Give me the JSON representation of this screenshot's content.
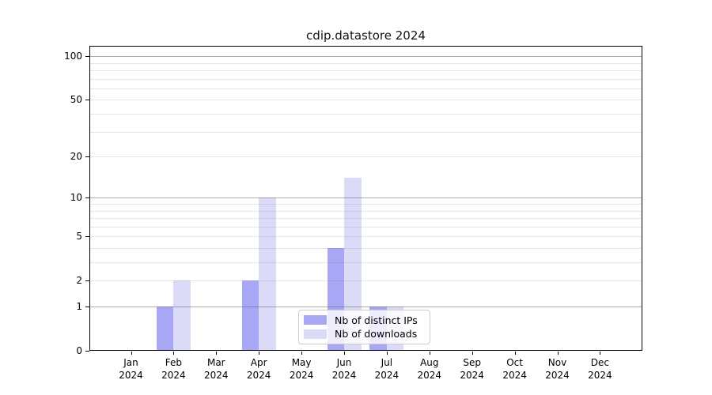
{
  "title": "cdip.datastore 2024",
  "chart_data": {
    "type": "bar",
    "title": "cdip.datastore 2024",
    "categories": [
      "Jan 2024",
      "Feb 2024",
      "Mar 2024",
      "Apr 2024",
      "May 2024",
      "Jun 2024",
      "Jul 2024",
      "Aug 2024",
      "Sep 2024",
      "Oct 2024",
      "Nov 2024",
      "Dec 2024"
    ],
    "series": [
      {
        "name": "Nb of distinct IPs",
        "color": "#a7a7f5",
        "values": [
          0,
          1,
          0,
          2,
          0,
          4,
          1,
          0,
          0,
          0,
          0,
          0
        ]
      },
      {
        "name": "Nb of downloads",
        "color": "#dbdbf8",
        "values": [
          0,
          2,
          0,
          10,
          0,
          14,
          1,
          0,
          0,
          0,
          0,
          0
        ]
      }
    ],
    "xlabel": "",
    "ylabel": "",
    "y_scale": "log10(1+x)",
    "y_ticks": [
      0,
      1,
      2,
      5,
      10,
      20,
      50,
      100
    ],
    "ylim": [
      0,
      118
    ],
    "grid": {
      "on": true,
      "minor_values": [
        2,
        3,
        4,
        5,
        6,
        7,
        8,
        9,
        20,
        30,
        40,
        50,
        60,
        70,
        80,
        90
      ],
      "major_values": [
        1,
        10,
        100
      ],
      "minor_color": "#e7e7e7",
      "major_color": "#b4b4b4"
    },
    "legend": {
      "position": "lower-center",
      "entries": [
        "Nb of distinct IPs",
        "Nb of downloads"
      ]
    },
    "colors": {
      "background": "#ffffff",
      "axis": "#000000",
      "text": "#111111"
    }
  }
}
